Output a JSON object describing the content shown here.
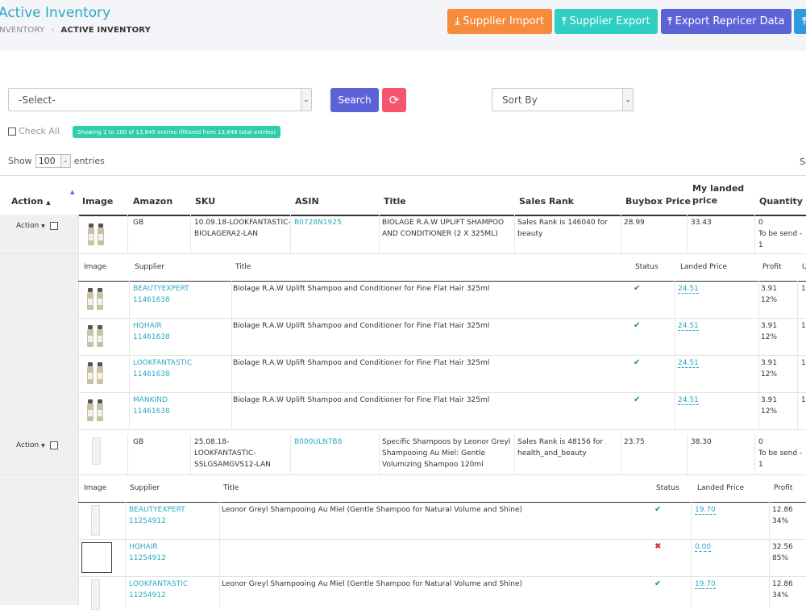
{
  "header": {
    "title": "Active Inventory",
    "breadcrumb": [
      "INVENTORY",
      "ACTIVE INVENTORY"
    ],
    "buttons": [
      "Supplier Import",
      "Supplier Export",
      "Export Repricer Data"
    ]
  },
  "filters": {
    "select1": "-Select-",
    "search_label": "Search",
    "sort_label": "Sort By",
    "check_all": "Check All",
    "info": "Showing 1 to 100 of 13,845 entries (filtered from 13,848 total entries)",
    "show_label": "Show",
    "show_value": "100",
    "entries_label": "entries",
    "search_cut": "Se"
  },
  "columns": {
    "action": "Action",
    "image": "Image",
    "amazon": "Amazon",
    "sku": "SKU",
    "asin": "ASIN",
    "title": "Title",
    "sales_rank": "Sales Rank",
    "buybox": "Buybox Price",
    "landed1": "My landed",
    "landed2": "price",
    "quantity": "Quantity"
  },
  "subcolumns": {
    "image": "Image",
    "supplier": "Supplier",
    "title": "Title",
    "status": "Status",
    "landed": "Landed Price",
    "profit": "Profit",
    "extra": "U"
  },
  "products": [
    {
      "action": "Action",
      "amazon": "GB",
      "sku1": "10.09.18-LOOKFANTASTIC-",
      "sku2": "BIOLAGERA2-LAN",
      "asin": "B0728N1925",
      "title1": "BIOLAGE R.A.W UPLIFT SHAMPOO",
      "title2": "AND CONDITIONER (2 X 325ML)",
      "rank1": "Sales Rank is 146040 for",
      "rank2": "beauty",
      "buybox": "28.99",
      "landed": "33.43",
      "qty": "0",
      "qty2": "To be send - 1",
      "suppliers": [
        {
          "name": "BEAUTYEXPERT",
          "id": "11461638",
          "title": "Biolage R.A.W Uplift Shampoo and Conditioner for Fine Flat Hair 325ml",
          "status": "✔",
          "price": "24.51",
          "profit": "3.91",
          "pct": "12%",
          "extra": "1"
        },
        {
          "name": "HQHAIR",
          "id": "11461638",
          "title": "Biolage R.A.W Uplift Shampoo and Conditioner for Fine Flat Hair 325ml",
          "status": "✔",
          "price": "24.51",
          "profit": "3.91",
          "pct": "12%",
          "extra": "1"
        },
        {
          "name": "LOOKFANTASTIC",
          "id": "11461638",
          "title": "Biolage R.A.W Uplift Shampoo and Conditioner for Fine Flat Hair 325ml",
          "status": "✔",
          "price": "24.51",
          "profit": "3.91",
          "pct": "12%",
          "extra": "1"
        },
        {
          "name": "MANKIND",
          "id": "11461638",
          "title": "Biolage R.A.W Uplift Shampoo and Conditioner for Fine Flat Hair 325ml",
          "status": "✔",
          "price": "24.51",
          "profit": "3.91",
          "pct": "12%",
          "extra": "1"
        }
      ]
    },
    {
      "action": "Action",
      "amazon": "GB",
      "sku1": "25.08.18-",
      "sku2": "LOOKFANTASTIC-",
      "sku3": "SSLGSAMGVS12-LAN",
      "asin": "B000ULN7B8",
      "title1": "Specific Shampoos by Leonor Greyl",
      "title2": "Shampooing Au Miel: Gentle",
      "title3": "Volumizing Shampoo 120ml",
      "rank1": "Sales Rank is 48156 for",
      "rank2": "health_and_beauty",
      "buybox": "23.75",
      "landed": "38.30",
      "qty": "0",
      "qty2": "To be send - 1",
      "suppliers": [
        {
          "name": "BEAUTYEXPERT",
          "id": "11254912",
          "title": "Leonor Greyl Shampooing Au Miel (Gentle Shampoo for Natural Volume and Shine)",
          "status": "✔",
          "price": "19.70",
          "profit": "12.86",
          "pct": "34%"
        },
        {
          "name": "HQHAIR",
          "id": "11254912",
          "title": "",
          "status": "✖",
          "price": "0.00",
          "profit": "32.56",
          "pct": "85%"
        },
        {
          "name": "LOOKFANTASTIC",
          "id": "11254912",
          "title": "Leonor Greyl Shampooing Au Miel (Gentle Shampoo for Natural Volume and Shine)",
          "status": "✔",
          "price": "19.70",
          "profit": "12.86",
          "pct": "34%"
        }
      ]
    }
  ]
}
